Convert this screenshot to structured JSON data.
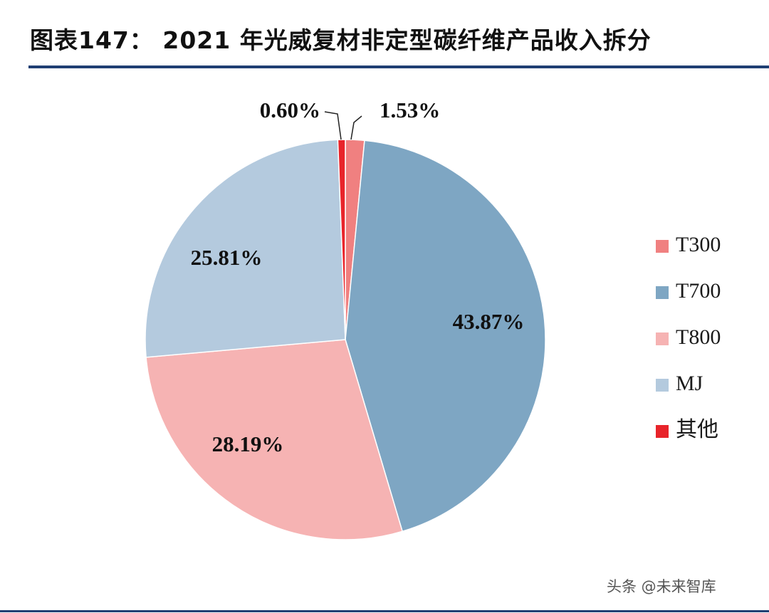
{
  "title": "图表147： 2021 年光威复材非定型碳纤维产品收入拆分",
  "watermark": "头条 @未来智库",
  "chart_data": {
    "type": "pie",
    "title": "图表147： 2021 年光威复材非定型碳纤维产品收入拆分",
    "unit": "%",
    "legend_position": "right",
    "slices": [
      {
        "name": "T300",
        "value": 1.53,
        "label": "1.53%",
        "color": "#f08080"
      },
      {
        "name": "T700",
        "value": 43.87,
        "label": "43.87%",
        "color": "#7ea6c3"
      },
      {
        "name": "T800",
        "value": 28.19,
        "label": "28.19%",
        "color": "#f6b3b3"
      },
      {
        "name": "MJ",
        "value": 25.81,
        "label": "25.81%",
        "color": "#b4cade"
      },
      {
        "name": "其他",
        "value": 0.6,
        "label": "0.60%",
        "color": "#e8242a"
      }
    ]
  }
}
